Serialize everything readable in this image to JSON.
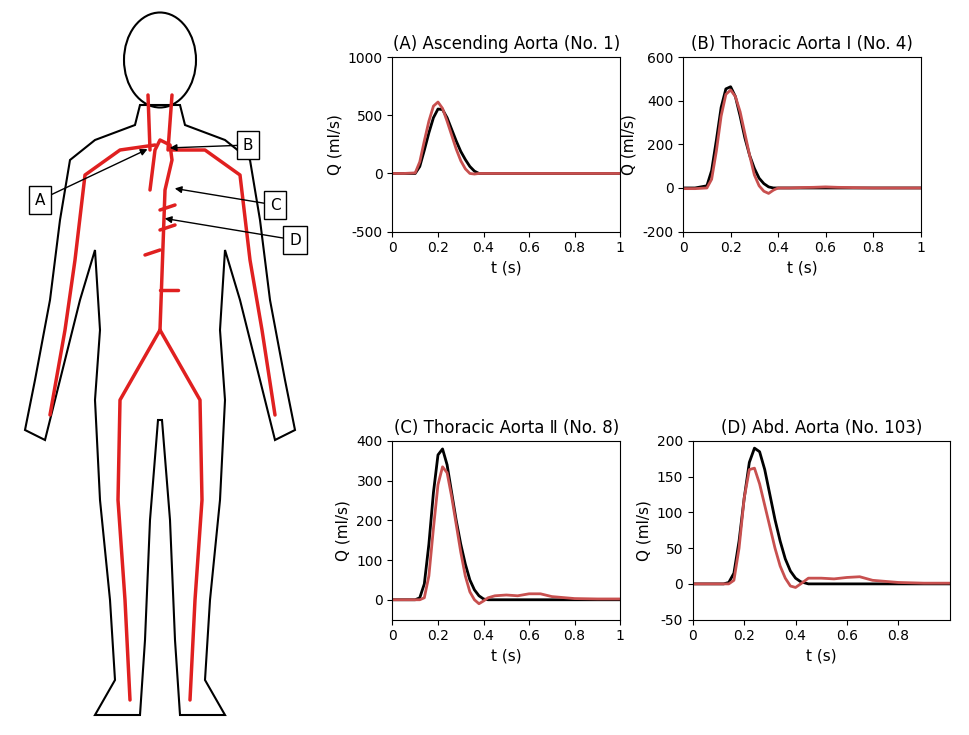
{
  "diagram": {
    "labels": [
      "A",
      "B",
      "C",
      "D"
    ]
  },
  "chart_data": [
    {
      "type": "line",
      "title": "(A) Ascending Aorta (No. 1)",
      "xlabel": "t (s)",
      "ylabel": "Q (ml/s)",
      "x": [
        0,
        0.05,
        0.1,
        0.12,
        0.14,
        0.16,
        0.18,
        0.2,
        0.22,
        0.24,
        0.26,
        0.28,
        0.3,
        0.32,
        0.34,
        0.36,
        0.38,
        0.4,
        0.42,
        0.45,
        0.5,
        0.55,
        0.6,
        0.65,
        0.7,
        0.8,
        0.9,
        1
      ],
      "series": [
        {
          "color": "#000000",
          "values": [
            0,
            0,
            0,
            60,
            200,
            350,
            480,
            555,
            550,
            480,
            380,
            280,
            190,
            120,
            60,
            20,
            0,
            0,
            0,
            0,
            0,
            0,
            0,
            0,
            0,
            0,
            0,
            0
          ]
        },
        {
          "color": "#c8504f",
          "values": [
            0,
            0,
            5,
            100,
            280,
            450,
            580,
            615,
            560,
            450,
            330,
            210,
            110,
            40,
            0,
            -5,
            0,
            0,
            0,
            0,
            0,
            0,
            0,
            0,
            0,
            0,
            0,
            0
          ]
        }
      ],
      "xlim": [
        0,
        1
      ],
      "xticks": [
        0,
        0.2,
        0.4,
        0.6,
        0.8,
        1
      ],
      "ylim": [
        -500,
        1000
      ],
      "yticks": [
        -500,
        0,
        500,
        1000
      ]
    },
    {
      "type": "line",
      "title": "(B) Thoracic Aorta Ⅰ (No. 4)",
      "xlabel": "t (s)",
      "ylabel": "Q (ml/s)",
      "x": [
        0,
        0.05,
        0.1,
        0.12,
        0.14,
        0.16,
        0.18,
        0.2,
        0.22,
        0.24,
        0.26,
        0.28,
        0.3,
        0.32,
        0.34,
        0.36,
        0.38,
        0.4,
        0.42,
        0.45,
        0.5,
        0.55,
        0.6,
        0.65,
        0.7,
        0.8,
        0.9,
        1
      ],
      "series": [
        {
          "color": "#000000",
          "values": [
            0,
            0,
            10,
            80,
            220,
            370,
            455,
            465,
            420,
            330,
            230,
            150,
            90,
            45,
            20,
            5,
            0,
            0,
            0,
            0,
            0,
            0,
            0,
            0,
            0,
            0,
            0,
            0
          ]
        },
        {
          "color": "#c8504f",
          "values": [
            -3,
            -3,
            0,
            40,
            170,
            330,
            430,
            450,
            420,
            350,
            250,
            150,
            60,
            10,
            -15,
            -25,
            -10,
            0,
            0,
            0,
            2,
            3,
            5,
            3,
            2,
            0,
            0,
            0
          ]
        }
      ],
      "xlim": [
        0,
        1
      ],
      "xticks": [
        0,
        0.2,
        0.4,
        0.6,
        0.8,
        1
      ],
      "ylim": [
        -200,
        600
      ],
      "yticks": [
        -200,
        0,
        200,
        400,
        600
      ]
    },
    {
      "type": "line",
      "title": "(C) Thoracic Aorta Ⅱ (No. 8)",
      "xlabel": "t (s)",
      "ylabel": "Q (ml/s)",
      "x": [
        0,
        0.05,
        0.1,
        0.12,
        0.14,
        0.16,
        0.18,
        0.2,
        0.22,
        0.24,
        0.26,
        0.28,
        0.3,
        0.32,
        0.34,
        0.36,
        0.38,
        0.4,
        0.42,
        0.45,
        0.5,
        0.55,
        0.6,
        0.65,
        0.7,
        0.8,
        0.9,
        1
      ],
      "series": [
        {
          "color": "#000000",
          "values": [
            0,
            0,
            0,
            5,
            40,
            140,
            270,
            365,
            380,
            340,
            270,
            200,
            140,
            90,
            50,
            25,
            10,
            2,
            0,
            0,
            0,
            0,
            0,
            0,
            0,
            0,
            0,
            0
          ]
        },
        {
          "color": "#c8504f",
          "values": [
            0,
            0,
            0,
            0,
            5,
            60,
            180,
            290,
            335,
            320,
            260,
            190,
            120,
            60,
            20,
            0,
            -10,
            -3,
            5,
            10,
            12,
            10,
            15,
            15,
            8,
            3,
            2,
            2
          ]
        }
      ],
      "xlim": [
        0,
        1
      ],
      "xticks": [
        0,
        0.2,
        0.4,
        0.6,
        0.8,
        1
      ],
      "ylim": [
        -50,
        400
      ],
      "yticks": [
        0,
        100,
        200,
        300,
        400
      ]
    },
    {
      "type": "line",
      "title": "(D) Abd. Aorta (No. 103)",
      "xlabel": "t (s)",
      "ylabel": "Q (ml/s)",
      "x": [
        0,
        0.05,
        0.1,
        0.12,
        0.14,
        0.16,
        0.18,
        0.2,
        0.22,
        0.24,
        0.26,
        0.28,
        0.3,
        0.32,
        0.34,
        0.36,
        0.38,
        0.4,
        0.42,
        0.45,
        0.5,
        0.55,
        0.6,
        0.65,
        0.7,
        0.8,
        0.9,
        1
      ],
      "series": [
        {
          "color": "#000000",
          "values": [
            0,
            0,
            0,
            0,
            2,
            15,
            60,
            120,
            170,
            190,
            185,
            160,
            125,
            90,
            60,
            35,
            18,
            8,
            3,
            0,
            0,
            0,
            0,
            0,
            0,
            0,
            0,
            0
          ]
        },
        {
          "color": "#c8504f",
          "values": [
            0,
            0,
            0,
            0,
            0,
            5,
            50,
            120,
            160,
            162,
            140,
            110,
            80,
            50,
            25,
            8,
            -3,
            -5,
            0,
            8,
            8,
            7,
            9,
            10,
            5,
            2,
            1,
            1
          ]
        }
      ],
      "xlim": [
        0,
        1
      ],
      "xticks": [
        0,
        0.2,
        0.4,
        0.6,
        0.8
      ],
      "ylim": [
        -50,
        200
      ],
      "yticks": [
        -50,
        0,
        50,
        100,
        150,
        200
      ]
    }
  ]
}
